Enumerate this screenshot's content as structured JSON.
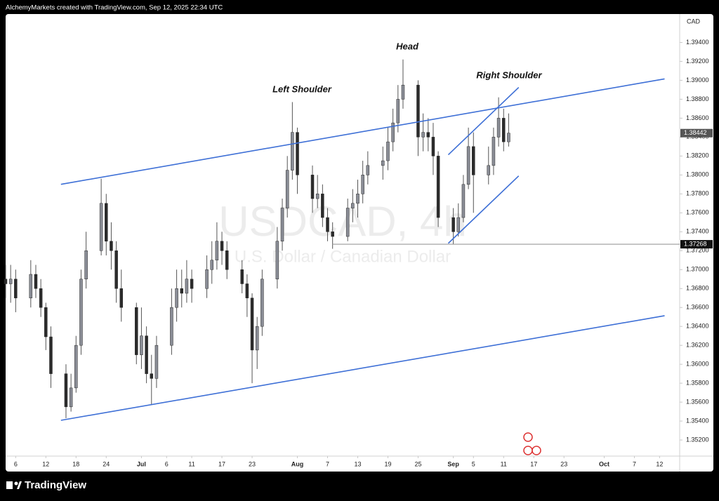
{
  "header": "AlchemyMarkets created with TradingView.com, Sep 12, 2025 22:34 UTC",
  "footer": "TradingView",
  "chart_data": {
    "type": "candlestick",
    "watermark": "USDCAD, 4h",
    "watermark_subtitle": "U.S. Dollar / Canadian Dollar",
    "axis_currency": "CAD",
    "annotations": [
      "Left Shoulder",
      "Head",
      "Right Shoulder"
    ],
    "up_color": "#8a8d96",
    "down_color": "#2b2b2b",
    "wick_color": "#555555",
    "grid": false,
    "xlim": [
      "Jun 4",
      "Oct 16"
    ],
    "xticks": [
      {
        "value": "Jun 6",
        "label": "6"
      },
      {
        "value": "Jun 12",
        "label": "12"
      },
      {
        "value": "Jun 18",
        "label": "18"
      },
      {
        "value": "Jun 24",
        "label": "24"
      },
      {
        "value": "Jul 1",
        "label": "Jul"
      },
      {
        "value": "Jul 6",
        "label": "6"
      },
      {
        "value": "Jul 11",
        "label": "11"
      },
      {
        "value": "Jul 17",
        "label": "17"
      },
      {
        "value": "Jul 23",
        "label": "23"
      },
      {
        "value": "Aug 1",
        "label": "Aug"
      },
      {
        "value": "Aug 7",
        "label": "7"
      },
      {
        "value": "Aug 13",
        "label": "13"
      },
      {
        "value": "Aug 19",
        "label": "19"
      },
      {
        "value": "Aug 25",
        "label": "25"
      },
      {
        "value": "Sep 1",
        "label": "Sep"
      },
      {
        "value": "Sep 5",
        "label": "5"
      },
      {
        "value": "Sep 11",
        "label": "11"
      },
      {
        "value": "Sep 17",
        "label": "17"
      },
      {
        "value": "Sep 23",
        "label": "23"
      },
      {
        "value": "Oct 1",
        "label": "Oct"
      },
      {
        "value": "Oct 7",
        "label": "7"
      },
      {
        "value": "Oct 12",
        "label": "12"
      }
    ],
    "ylim": [
      1.3503,
      1.397
    ],
    "yticks": [
      {
        "value": 1.352,
        "label": "1.35200"
      },
      {
        "value": 1.354,
        "label": "1.35400"
      },
      {
        "value": 1.356,
        "label": "1.35600"
      },
      {
        "value": 1.358,
        "label": "1.35800"
      },
      {
        "value": 1.36,
        "label": "1.36000"
      },
      {
        "value": 1.362,
        "label": "1.36200"
      },
      {
        "value": 1.364,
        "label": "1.36400"
      },
      {
        "value": 1.366,
        "label": "1.36600"
      },
      {
        "value": 1.368,
        "label": "1.36800"
      },
      {
        "value": 1.37,
        "label": "1.37000"
      },
      {
        "value": 1.372,
        "label": "1.37200"
      },
      {
        "value": 1.374,
        "label": "1.37400"
      },
      {
        "value": 1.376,
        "label": "1.37600"
      },
      {
        "value": 1.378,
        "label": "1.37800"
      },
      {
        "value": 1.38,
        "label": "1.38000"
      },
      {
        "value": 1.382,
        "label": "1.38200"
      },
      {
        "value": 1.384,
        "label": "1.38400"
      },
      {
        "value": 1.386,
        "label": "1.38600"
      },
      {
        "value": 1.388,
        "label": "1.38800"
      },
      {
        "value": 1.39,
        "label": "1.39000"
      },
      {
        "value": 1.392,
        "label": "1.39200"
      },
      {
        "value": 1.394,
        "label": "1.39400"
      }
    ],
    "x": [
      "Jun 4",
      "Jun 5",
      "Jun 6",
      "Jun 9",
      "Jun 10",
      "Jun 11",
      "Jun 12",
      "Jun 13",
      "Jun 16",
      "Jun 17",
      "Jun 18",
      "Jun 19",
      "Jun 20",
      "Jun 23",
      "Jun 24",
      "Jun 25",
      "Jun 26",
      "Jun 27",
      "Jun 30",
      "Jul 1",
      "Jul 2",
      "Jul 3",
      "Jul 4",
      "Jul 7",
      "Jul 8",
      "Jul 9",
      "Jul 10",
      "Jul 11",
      "Jul 14",
      "Jul 15",
      "Jul 16",
      "Jul 17",
      "Jul 18",
      "Jul 21",
      "Jul 22",
      "Jul 23",
      "Jul 24",
      "Jul 25",
      "Jul 28",
      "Jul 29",
      "Jul 30",
      "Jul 31",
      "Aug 1",
      "Aug 4",
      "Aug 5",
      "Aug 6",
      "Aug 7",
      "Aug 8",
      "Aug 11",
      "Aug 12",
      "Aug 13",
      "Aug 14",
      "Aug 15",
      "Aug 18",
      "Aug 19",
      "Aug 20",
      "Aug 21",
      "Aug 22",
      "Aug 25",
      "Aug 26",
      "Aug 27",
      "Aug 28",
      "Aug 29",
      "Sep 1",
      "Sep 2",
      "Sep 3",
      "Sep 4",
      "Sep 5",
      "Sep 8",
      "Sep 9",
      "Sep 10",
      "Sep 11",
      "Sep 12"
    ],
    "open": [
      1.369,
      1.3685,
      1.369,
      1.367,
      1.3695,
      1.368,
      1.366,
      1.3629,
      1.359,
      1.3555,
      1.3575,
      1.362,
      1.369,
      1.372,
      1.377,
      1.373,
      1.372,
      1.368,
      1.366,
      1.361,
      1.363,
      1.359,
      1.3585,
      1.362,
      1.366,
      1.368,
      1.3675,
      1.369,
      1.368,
      1.37,
      1.371,
      1.373,
      1.372,
      1.37,
      1.3685,
      1.367,
      1.3615,
      1.364,
      1.369,
      1.373,
      1.3765,
      1.3805,
      1.3845,
      1.38,
      1.3775,
      1.378,
      1.3755,
      1.374,
      1.3735,
      1.3765,
      1.377,
      1.378,
      1.38,
      1.381,
      1.3815,
      1.3835,
      1.3855,
      1.388,
      1.3895,
      1.384,
      1.3845,
      1.384,
      1.382,
      1.3755,
      1.374,
      1.3755,
      1.379,
      1.383,
      1.38,
      1.381,
      1.384,
      1.386,
      1.3835
    ],
    "high": [
      1.3705,
      1.3705,
      1.37,
      1.371,
      1.3705,
      1.369,
      1.3665,
      1.364,
      1.36,
      1.359,
      1.363,
      1.37,
      1.374,
      1.3796,
      1.378,
      1.375,
      1.373,
      1.37,
      1.3665,
      1.366,
      1.364,
      1.361,
      1.363,
      1.368,
      1.37,
      1.37,
      1.371,
      1.37,
      1.3715,
      1.373,
      1.375,
      1.374,
      1.373,
      1.371,
      1.3695,
      1.3675,
      1.365,
      1.37,
      1.3745,
      1.3775,
      1.382,
      1.3877,
      1.385,
      1.381,
      1.38,
      1.379,
      1.3765,
      1.375,
      1.3775,
      1.3785,
      1.3795,
      1.3815,
      1.3825,
      1.383,
      1.385,
      1.387,
      1.3895,
      1.3922,
      1.39,
      1.3865,
      1.386,
      1.3855,
      1.3825,
      1.3765,
      1.377,
      1.38,
      1.385,
      1.3845,
      1.383,
      1.385,
      1.3882,
      1.387,
      1.3865
    ],
    "low": [
      1.367,
      1.3665,
      1.3655,
      1.366,
      1.367,
      1.365,
      1.3615,
      1.3575,
      1.3543,
      1.355,
      1.357,
      1.361,
      1.368,
      1.3715,
      1.3715,
      1.37,
      1.3665,
      1.3645,
      1.36,
      1.3595,
      1.358,
      1.3557,
      1.3575,
      1.361,
      1.3645,
      1.366,
      1.3665,
      1.3665,
      1.367,
      1.3685,
      1.37,
      1.3705,
      1.369,
      1.3675,
      1.365,
      1.358,
      1.3595,
      1.363,
      1.368,
      1.372,
      1.3755,
      1.3795,
      1.378,
      1.376,
      1.3765,
      1.3745,
      1.373,
      1.3722,
      1.373,
      1.375,
      1.3755,
      1.377,
      1.379,
      1.3795,
      1.3805,
      1.3825,
      1.3845,
      1.387,
      1.382,
      1.3825,
      1.3825,
      1.38,
      1.3745,
      1.3727,
      1.3735,
      1.375,
      1.3785,
      1.376,
      1.379,
      1.38,
      1.383,
      1.3825,
      1.383
    ],
    "close": [
      1.3685,
      1.369,
      1.367,
      1.3695,
      1.368,
      1.366,
      1.3629,
      1.359,
      1.3555,
      1.3575,
      1.362,
      1.369,
      1.372,
      1.377,
      1.373,
      1.372,
      1.368,
      1.366,
      1.361,
      1.363,
      1.359,
      1.3585,
      1.362,
      1.366,
      1.368,
      1.3675,
      1.369,
      1.368,
      1.37,
      1.371,
      1.373,
      1.372,
      1.37,
      1.3685,
      1.367,
      1.3615,
      1.364,
      1.369,
      1.373,
      1.3765,
      1.3805,
      1.3845,
      1.38,
      1.3775,
      1.378,
      1.3755,
      1.374,
      1.3735,
      1.3765,
      1.377,
      1.378,
      1.38,
      1.381,
      1.3815,
      1.3835,
      1.3855,
      1.388,
      1.3895,
      1.384,
      1.3845,
      1.384,
      1.382,
      1.3755,
      1.374,
      1.3755,
      1.379,
      1.383,
      1.38,
      1.381,
      1.384,
      1.386,
      1.3835,
      1.38442
    ],
    "trendlines": [
      {
        "x": [
          "Jun 15",
          "Oct 13"
        ],
        "y": [
          1.37901,
          1.39015
        ],
        "color": "#3d6fd6"
      },
      {
        "x": [
          "Jun 15",
          "Oct 13"
        ],
        "y": [
          1.35408,
          1.36513
        ],
        "color": "#3d6fd6"
      },
      {
        "x": [
          "Aug 31",
          "Sep 14"
        ],
        "y": [
          1.38213,
          1.38925
        ],
        "color": "#3d6fd6"
      },
      {
        "x": [
          "Aug 31",
          "Sep 14"
        ],
        "y": [
          1.37278,
          1.3799
        ],
        "color": "#3d6fd6"
      }
    ],
    "level": {
      "value": 1.37268,
      "from": "Aug 8",
      "color": "#9a9a9a"
    }
  }
}
